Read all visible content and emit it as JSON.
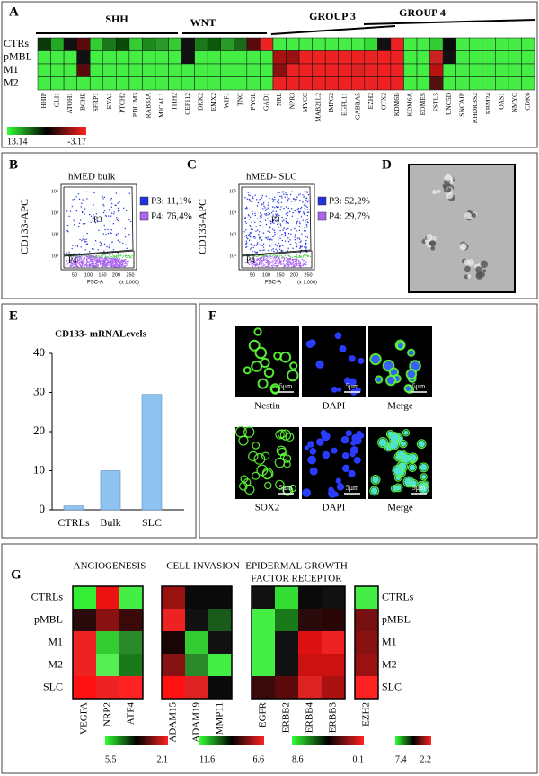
{
  "panel_labels": [
    "A",
    "B",
    "C",
    "D",
    "E",
    "F",
    "G"
  ],
  "panel_a": {
    "groups": [
      "SHH",
      "WNT",
      "GROUP 3",
      "GROUP 4"
    ],
    "rows": [
      "CTRs",
      "pMBL",
      "M1",
      "M2"
    ],
    "genes": [
      "HHIP",
      "GLI1",
      "ATOH1",
      "BCHE",
      "SFRP1",
      "EYA1",
      "PTCH2",
      "PDLIM3",
      "RAB33A",
      "MICAL1",
      "ITIH2",
      "CEP112",
      "DKK2",
      "EMX2",
      "WIF1",
      "TNC",
      "PYGL",
      "GAD1",
      "NRL",
      "NPR3",
      "MYCC",
      "MAB21L2",
      "IMPG2",
      "EGFL11",
      "GABRA5",
      "EZH2",
      "OTX2",
      "KDM6B",
      "KDM6A",
      "EOMES",
      "FSTL5",
      "UNC5D",
      "SNCAIP",
      "KHDRBS2",
      "RBM24",
      "OAS1",
      "NMYC",
      "CDK6"
    ],
    "colors": [
      [
        "#0a3a0a",
        "#22aa22",
        "#111111",
        "#5a0a0a",
        "#33cc33",
        "#1a7a1a",
        "#0a4a0a",
        "#33cc33",
        "#1a8a1a",
        "#2a9a2a",
        "#33cc33",
        "#111111",
        "#1a7a1a",
        "#0a5a0a",
        "#2a9a2a",
        "#1a6a1a",
        "#5a0a0a",
        "#ee2222",
        "#44ee44",
        "#44ee44",
        "#44ee44",
        "#44ee44",
        "#44ee44",
        "#44ee44",
        "#44ee44",
        "#33dd33",
        "#111111",
        "#ee2222",
        "#44ee44",
        "#44ee44",
        "#33cc33",
        "#0a0a0a",
        "#44ee44",
        "#44ee44",
        "#44ee44",
        "#44ee44",
        "#44ee44",
        "#44ee44"
      ],
      [
        "#44ee44",
        "#44ee44",
        "#44ee44",
        "#111111",
        "#44ee44",
        "#44ee44",
        "#44ee44",
        "#44ee44",
        "#44ee44",
        "#44ee44",
        "#44ee44",
        "#111111",
        "#44ee44",
        "#44ee44",
        "#44ee44",
        "#44ee44",
        "#44ee44",
        "#44ee44",
        "#aa1111",
        "#991111",
        "#ee2222",
        "#ee2222",
        "#ee2222",
        "#ee2222",
        "#ee2222",
        "#ee2222",
        "#ee2222",
        "#ee2222",
        "#44ee44",
        "#44ee44",
        "#cc2222",
        "#111111",
        "#44ee44",
        "#44ee44",
        "#44ee44",
        "#44ee44",
        "#44ee44",
        "#44ee44"
      ],
      [
        "#44ee44",
        "#44ee44",
        "#44ee44",
        "#5a0a0a",
        "#44ee44",
        "#44ee44",
        "#44ee44",
        "#44ee44",
        "#44ee44",
        "#44ee44",
        "#44ee44",
        "#44ee44",
        "#44ee44",
        "#44ee44",
        "#44ee44",
        "#44ee44",
        "#44ee44",
        "#44ee44",
        "#881111",
        "#ee2222",
        "#ee2222",
        "#ee2222",
        "#ee2222",
        "#ee2222",
        "#dd2222",
        "#ee2222",
        "#ee2222",
        "#ee2222",
        "#44ee44",
        "#44ee44",
        "#bb1111",
        "#44ee44",
        "#44ee44",
        "#44ee44",
        "#44ee44",
        "#44ee44",
        "#44ee44",
        "#44ee44"
      ],
      [
        "#44ee44",
        "#44ee44",
        "#44ee44",
        "#44ee44",
        "#44ee44",
        "#44ee44",
        "#44ee44",
        "#44ee44",
        "#44ee44",
        "#44ee44",
        "#44ee44",
        "#44ee44",
        "#44ee44",
        "#44ee44",
        "#44ee44",
        "#44ee44",
        "#44ee44",
        "#44ee44",
        "#ee2222",
        "#ee2222",
        "#ee2222",
        "#ee2222",
        "#ee2222",
        "#ee2222",
        "#ee2222",
        "#ee2222",
        "#ee2222",
        "#ee2222",
        "#44ee44",
        "#44ee44",
        "#551111",
        "#44ee44",
        "#44ee44",
        "#44ee44",
        "#44ee44",
        "#44ee44",
        "#44ee44",
        "#44ee44"
      ]
    ],
    "colorbar": [
      "13.14",
      "-3.17"
    ]
  },
  "panel_b": {
    "title": "hMED bulk",
    "y_label": "CD133-APC",
    "x_label": "FSC-A",
    "x_unit": "(x 1,000)",
    "yticks": [
      "10⁵",
      "10⁴",
      "10³",
      "10²"
    ],
    "xticks": [
      "50",
      "100",
      "150",
      "200",
      "250"
    ],
    "gates": [
      "P3",
      "P4"
    ],
    "legend": [
      {
        "label": "P3: 11,1%",
        "color": "#2233dd"
      },
      {
        "label": "P4: 76,4%",
        "color": "#aa66ee"
      }
    ]
  },
  "panel_c": {
    "title": "hMED- SLC",
    "y_label": "CD133-APC",
    "x_label": "FSC-A",
    "x_unit": "(x 1,000)",
    "yticks": [
      "10⁵",
      "10⁴",
      "10³",
      "10²"
    ],
    "xticks": [
      "50",
      "100",
      "150",
      "200",
      "250"
    ],
    "gates": [
      "P3",
      "P4"
    ],
    "legend": [
      {
        "label": "P3: 52,2%",
        "color": "#2233dd"
      },
      {
        "label": "P4: 29,7%",
        "color": "#aa66ee"
      }
    ]
  },
  "chart_data": {
    "type": "bar",
    "title": "CD133- mRNALevels",
    "categories": [
      "CTRLs",
      "Bulk",
      "SLC"
    ],
    "values": [
      1,
      10,
      29.5
    ],
    "ylim": [
      0,
      40
    ],
    "yticks": [
      0,
      10,
      20,
      30,
      40
    ],
    "color": "#8ec3f2"
  },
  "panel_f": {
    "rows": [
      [
        "Nestin",
        "DAPI",
        "Merge"
      ],
      [
        "SOX2",
        "DAPI",
        "Merge"
      ]
    ],
    "scale": "5μm"
  },
  "panel_g": {
    "rows": [
      "CTRLs",
      "pMBL",
      "M1",
      "M2",
      "SLC"
    ],
    "heatmaps": [
      {
        "title": [
          "ANGIOGENESIS"
        ],
        "columns": [
          "VEGFA",
          "NRP2",
          "ATF4"
        ],
        "colors": [
          [
            "#33ee33",
            "#ee1111",
            "#44ee44"
          ],
          [
            "#2a0a0a",
            "#881111",
            "#3a0a0a"
          ],
          [
            "#ee2222",
            "#33cc33",
            "#2a8a2a"
          ],
          [
            "#ee2222",
            "#55ee55",
            "#1a7a1a"
          ],
          [
            "#ff1111",
            "#ee2222",
            "#ff2222"
          ]
        ],
        "colorbar": [
          "5.5",
          "2.1"
        ]
      },
      {
        "title": [
          "CELL INVASION"
        ],
        "columns": [
          "ADAM15",
          "ADAM19",
          "MMP11"
        ],
        "colors": [
          [
            "#991111",
            "#0a0a0a",
            "#0a0a0a"
          ],
          [
            "#ee2222",
            "#111111",
            "#1a5a1a"
          ],
          [
            "#1a0505",
            "#33cc33",
            "#111111"
          ],
          [
            "#881111",
            "#2a8a2a",
            "#44ee44"
          ],
          [
            "#ff1111",
            "#dd2222",
            "#0a0a0a"
          ]
        ],
        "colorbar": [
          "11.6",
          "6.6"
        ]
      },
      {
        "title": [
          "EPIDERMAL GROWTH",
          "FACTOR RECEPTOR"
        ],
        "columns": [
          "EGFR",
          "ERBB2",
          "ERBB4",
          "ERBB3"
        ],
        "colors": [
          [
            "#111111",
            "#33dd33",
            "#0a0a0a",
            "#111111"
          ],
          [
            "#44ee44",
            "#1a7a1a",
            "#2a0a0a",
            "#2a0505"
          ],
          [
            "#44ee44",
            "#111111",
            "#dd1111",
            "#ee2222"
          ],
          [
            "#44ee44",
            "#111111",
            "#cc1111",
            "#cc1111"
          ],
          [
            "#3a0a0a",
            "#5a0a0a",
            "#dd2222",
            "#aa1111"
          ]
        ],
        "colorbar": [
          "8.6",
          "0.1"
        ]
      },
      {
        "title": [],
        "columns": [
          "EZH2"
        ],
        "colors": [
          [
            "#44ee44"
          ],
          [
            "#771111"
          ],
          [
            "#881111"
          ],
          [
            "#991111"
          ],
          [
            "#ff2222"
          ]
        ],
        "colorbar": [
          "7.4",
          "2.2"
        ]
      }
    ]
  }
}
